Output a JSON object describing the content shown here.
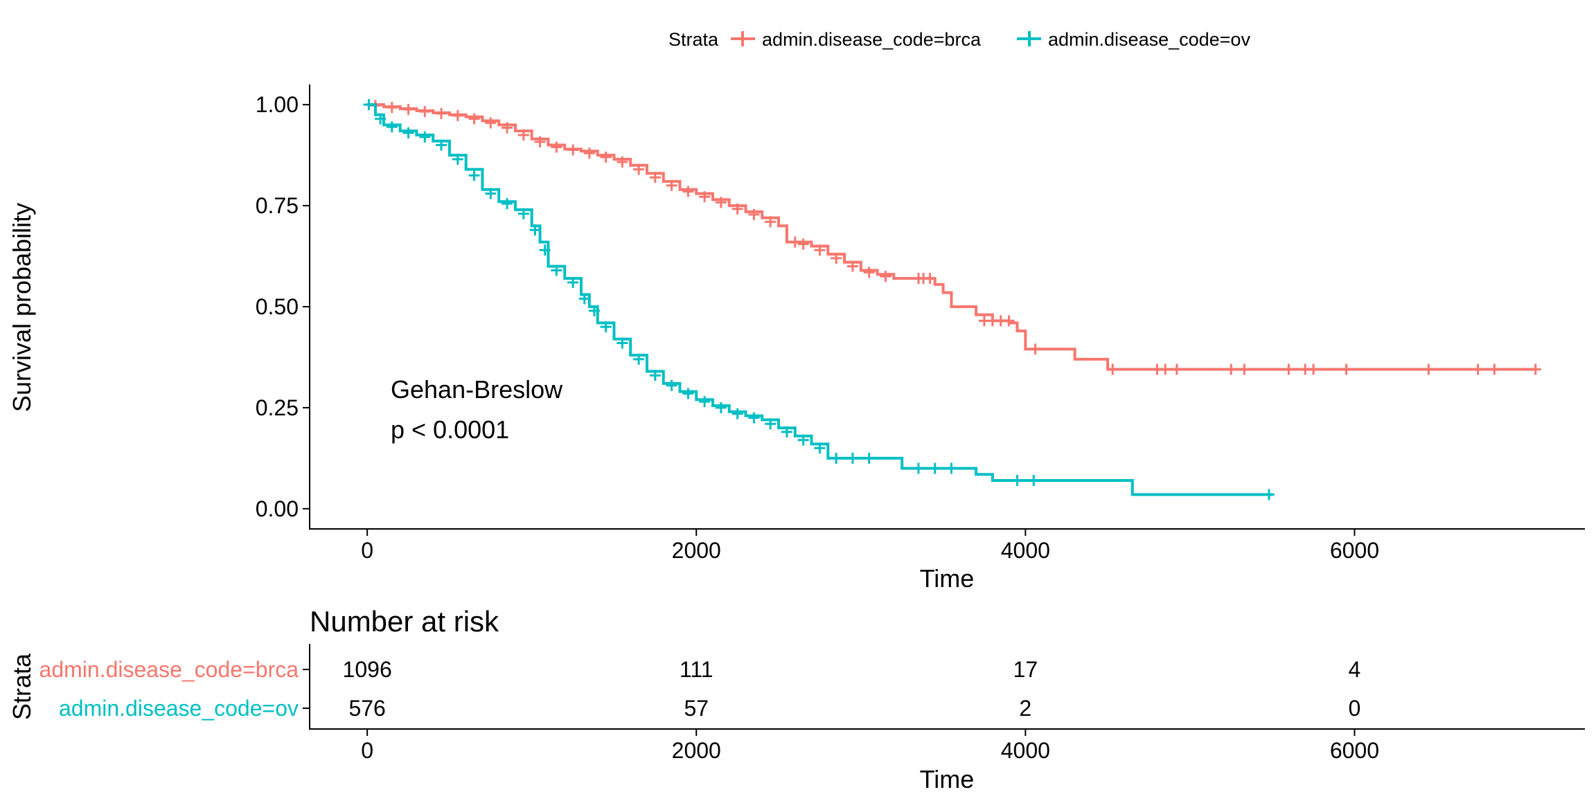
{
  "chart_data": [
    {
      "type": "line",
      "subtype": "kaplan-meier",
      "title": "",
      "xlabel": "Time",
      "ylabel": "Survival probability",
      "xlim": [
        -350,
        7400
      ],
      "ylim": [
        -0.05,
        1.05
      ],
      "x_ticks": [
        0,
        2000,
        4000,
        6000
      ],
      "y_ticks": [
        0.0,
        0.25,
        0.5,
        0.75,
        1.0
      ],
      "y_tick_labels": [
        "0.00",
        "0.25",
        "0.50",
        "0.75",
        "1.00"
      ],
      "grid": false,
      "legend": {
        "title": "Strata",
        "placement": "top",
        "entries": [
          "admin.disease_code=brca",
          "admin.disease_code=ov"
        ]
      },
      "annotations": [
        "Gehan-Breslow",
        "p < 0.0001"
      ],
      "series": [
        {
          "name": "admin.disease_code=brca",
          "color": "#F8766D",
          "x": [
            0,
            100,
            200,
            300,
            400,
            500,
            600,
            700,
            800,
            900,
            1000,
            1100,
            1200,
            1300,
            1400,
            1500,
            1600,
            1700,
            1800,
            1900,
            2000,
            2100,
            2200,
            2300,
            2400,
            2500,
            2550,
            2700,
            2800,
            2900,
            3000,
            3100,
            3200,
            3300,
            3400,
            3450,
            3500,
            3550,
            3700,
            3800,
            3900,
            3950,
            4000,
            4100,
            4300,
            4400,
            4500,
            7100
          ],
          "y": [
            1.0,
            0.995,
            0.99,
            0.985,
            0.98,
            0.975,
            0.97,
            0.96,
            0.95,
            0.935,
            0.915,
            0.9,
            0.89,
            0.885,
            0.875,
            0.865,
            0.85,
            0.83,
            0.81,
            0.79,
            0.78,
            0.765,
            0.75,
            0.735,
            0.72,
            0.7,
            0.66,
            0.65,
            0.63,
            0.61,
            0.59,
            0.58,
            0.57,
            0.57,
            0.57,
            0.555,
            0.535,
            0.5,
            0.48,
            0.465,
            0.46,
            0.44,
            0.395,
            0.395,
            0.37,
            0.37,
            0.345,
            0.345
          ],
          "censor_x": [
            50,
            150,
            250,
            350,
            450,
            550,
            650,
            750,
            850,
            950,
            1050,
            1150,
            1250,
            1350,
            1450,
            1550,
            1650,
            1750,
            1850,
            1950,
            2050,
            2150,
            2250,
            2350,
            2450,
            2600,
            2650,
            2750,
            2850,
            2950,
            3050,
            3150,
            3350,
            3380,
            3420,
            3750,
            3800,
            3850,
            3900,
            4060,
            4530,
            4800,
            4850,
            4920,
            5250,
            5330,
            5600,
            5700,
            5750,
            5950,
            6450,
            6750,
            6850,
            7100
          ],
          "censor_y": [
            0.998,
            0.993,
            0.988,
            0.983,
            0.978,
            0.973,
            0.965,
            0.955,
            0.943,
            0.925,
            0.908,
            0.895,
            0.888,
            0.88,
            0.87,
            0.858,
            0.84,
            0.82,
            0.8,
            0.785,
            0.772,
            0.758,
            0.742,
            0.728,
            0.71,
            0.66,
            0.655,
            0.64,
            0.62,
            0.6,
            0.585,
            0.575,
            0.57,
            0.57,
            0.57,
            0.465,
            0.465,
            0.465,
            0.465,
            0.395,
            0.345,
            0.345,
            0.345,
            0.345,
            0.345,
            0.345,
            0.345,
            0.345,
            0.345,
            0.345,
            0.345,
            0.345,
            0.345,
            0.345
          ]
        },
        {
          "name": "admin.disease_code=ov",
          "color": "#00BFC4",
          "x": [
            0,
            50,
            100,
            200,
            300,
            400,
            500,
            600,
            700,
            800,
            900,
            1000,
            1050,
            1100,
            1200,
            1300,
            1350,
            1400,
            1500,
            1600,
            1700,
            1800,
            1900,
            2000,
            2100,
            2200,
            2300,
            2400,
            2500,
            2600,
            2700,
            2800,
            3200,
            3250,
            3700,
            3800,
            4600,
            4650,
            5500
          ],
          "y": [
            1.0,
            0.975,
            0.95,
            0.935,
            0.925,
            0.91,
            0.875,
            0.84,
            0.79,
            0.76,
            0.74,
            0.7,
            0.66,
            0.6,
            0.57,
            0.53,
            0.5,
            0.46,
            0.42,
            0.38,
            0.34,
            0.31,
            0.29,
            0.27,
            0.255,
            0.24,
            0.23,
            0.22,
            0.2,
            0.18,
            0.16,
            0.125,
            0.125,
            0.1,
            0.085,
            0.07,
            0.07,
            0.035,
            0.035
          ],
          "censor_x": [
            10,
            80,
            150,
            250,
            350,
            450,
            550,
            650,
            750,
            850,
            950,
            1020,
            1080,
            1150,
            1250,
            1320,
            1380,
            1450,
            1550,
            1650,
            1750,
            1850,
            1950,
            2050,
            2150,
            2250,
            2350,
            2450,
            2550,
            2650,
            2750,
            2850,
            2950,
            3050,
            3350,
            3450,
            3550,
            3950,
            4050,
            5480
          ],
          "censor_y": [
            1.0,
            0.965,
            0.945,
            0.93,
            0.92,
            0.9,
            0.865,
            0.825,
            0.78,
            0.755,
            0.73,
            0.69,
            0.64,
            0.59,
            0.56,
            0.52,
            0.49,
            0.45,
            0.41,
            0.37,
            0.33,
            0.305,
            0.285,
            0.265,
            0.25,
            0.235,
            0.225,
            0.21,
            0.19,
            0.17,
            0.15,
            0.125,
            0.125,
            0.125,
            0.1,
            0.1,
            0.1,
            0.07,
            0.07,
            0.035
          ]
        }
      ]
    },
    {
      "type": "table",
      "title": "Number at risk",
      "xlabel": "Time",
      "ylabel": "Strata",
      "xlim": [
        -350,
        7400
      ],
      "x_ticks": [
        0,
        2000,
        4000,
        6000
      ],
      "rows": [
        {
          "name": "admin.disease_code=brca",
          "color": "#F8766D",
          "values": [
            "1096",
            "111",
            "17",
            "4"
          ]
        },
        {
          "name": "admin.disease_code=ov",
          "color": "#00BFC4",
          "values": [
            "576",
            "57",
            "2",
            "0"
          ]
        }
      ]
    }
  ]
}
